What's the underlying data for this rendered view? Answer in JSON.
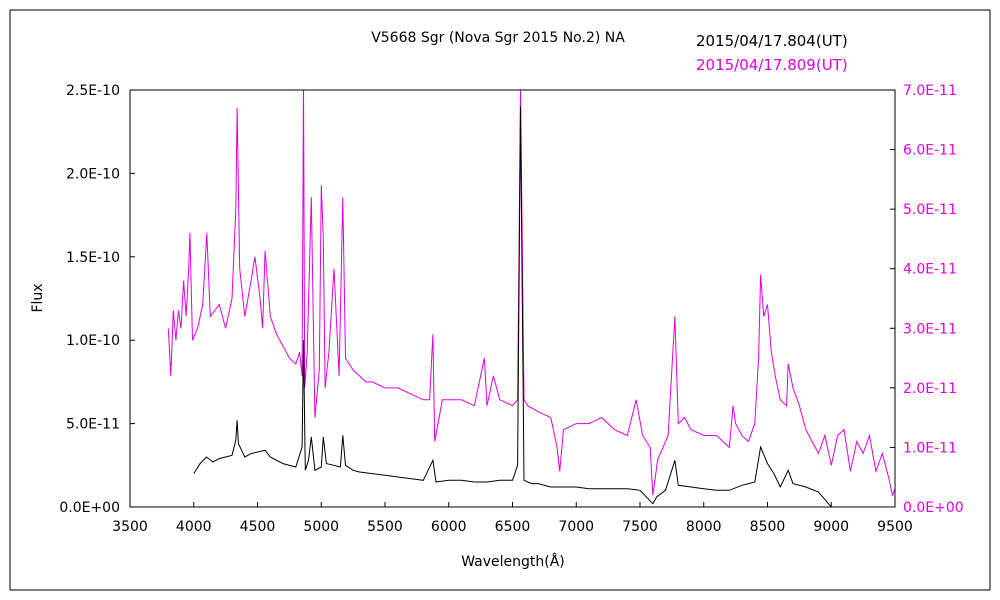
{
  "chart_data": {
    "type": "line",
    "title": "V5668 Sgr (Nova Sgr 2015 No.2)    NA",
    "xlabel": "Wavelength(Å)",
    "ylabel": "Flux",
    "xlim": [
      3500,
      9500
    ],
    "ylim_left": [
      0,
      2.5e-10
    ],
    "ylim_right": [
      0,
      7e-11
    ],
    "x_ticks": [
      "3500",
      "4000",
      "4500",
      "5000",
      "5500",
      "6000",
      "6500",
      "7000",
      "7500",
      "8000",
      "8500",
      "9000",
      "9500"
    ],
    "y_left_ticks": [
      "0.0E+00",
      "5.0E-11",
      "1.0E-10",
      "1.5E-10",
      "2.0E-10",
      "2.5E-10"
    ],
    "y_right_ticks": [
      "0.0E+00",
      "1.0E-11",
      "2.0E-11",
      "3.0E-11",
      "4.0E-11",
      "5.0E-11",
      "6.0E-11",
      "7.0E-11"
    ],
    "grid": false,
    "legend_placement": "top-right",
    "series": [
      {
        "name": "2015/04/17.804(UT)",
        "color": "#000000",
        "axis": "left",
        "x": [
          4000,
          4050,
          4100,
          4150,
          4200,
          4250,
          4300,
          4330,
          4340,
          4350,
          4400,
          4450,
          4500,
          4560,
          4600,
          4700,
          4800,
          4850,
          4861,
          4875,
          4900,
          4922,
          4950,
          5000,
          5016,
          5040,
          5100,
          5150,
          5169,
          5190,
          5250,
          5300,
          5400,
          5500,
          5600,
          5700,
          5800,
          5876,
          5900,
          6000,
          6100,
          6200,
          6300,
          6400,
          6500,
          6540,
          6563,
          6590,
          6650,
          6700,
          6800,
          6900,
          7000,
          7100,
          7200,
          7300,
          7400,
          7500,
          7600,
          7630,
          7700,
          7774,
          7800,
          7900,
          8000,
          8100,
          8200,
          8300,
          8400,
          8446,
          8500,
          8550,
          8600,
          8662,
          8700,
          8800,
          8900,
          9000
        ],
        "values": [
          2e-11,
          2.6e-11,
          3e-11,
          2.7e-11,
          2.9e-11,
          3e-11,
          3.1e-11,
          4e-11,
          5.2e-11,
          3.8e-11,
          3e-11,
          3.2e-11,
          3.3e-11,
          3.4e-11,
          3e-11,
          2.6e-11,
          2.4e-11,
          3.6e-11,
          1e-10,
          2.2e-11,
          2.8e-11,
          4.2e-11,
          2.2e-11,
          2.4e-11,
          4.2e-11,
          2.6e-11,
          2.5e-11,
          2.4e-11,
          4.3e-11,
          2.5e-11,
          2.2e-11,
          2.1e-11,
          2e-11,
          1.9e-11,
          1.8e-11,
          1.7e-11,
          1.6e-11,
          2.8e-11,
          1.5e-11,
          1.6e-11,
          1.6e-11,
          1.5e-11,
          1.5e-11,
          1.6e-11,
          1.6e-11,
          2.5e-11,
          2.4e-10,
          1.6e-11,
          1.4e-11,
          1.4e-11,
          1.2e-11,
          1.2e-11,
          1.2e-11,
          1.1e-11,
          1.1e-11,
          1.1e-11,
          1.1e-11,
          1e-11,
          2e-12,
          6e-12,
          1e-11,
          2.8e-11,
          1.3e-11,
          1.2e-11,
          1.1e-11,
          1e-11,
          1e-11,
          1.3e-11,
          1.5e-11,
          3.6e-11,
          2.6e-11,
          2e-11,
          1.2e-11,
          2.2e-11,
          1.4e-11,
          1.2e-11,
          9e-12,
          0
        ]
      },
      {
        "name": "2015/04/17.809(UT)",
        "color": "#e000e0",
        "axis": "right",
        "x": [
          3800,
          3820,
          3840,
          3860,
          3880,
          3900,
          3920,
          3940,
          3960,
          3970,
          3990,
          4030,
          4070,
          4102,
          4130,
          4200,
          4250,
          4300,
          4330,
          4340,
          4360,
          4400,
          4450,
          4480,
          4520,
          4540,
          4560,
          4600,
          4650,
          4700,
          4750,
          4800,
          4830,
          4850,
          4861,
          4870,
          4890,
          4922,
          4950,
          4985,
          5000,
          5016,
          5030,
          5060,
          5100,
          5140,
          5169,
          5190,
          5250,
          5300,
          5350,
          5400,
          5500,
          5600,
          5700,
          5800,
          5850,
          5876,
          5890,
          5950,
          6000,
          6100,
          6200,
          6280,
          6300,
          6350,
          6400,
          6500,
          6540,
          6563,
          6590,
          6620,
          6700,
          6800,
          6850,
          6870,
          6900,
          7000,
          7100,
          7200,
          7300,
          7400,
          7470,
          7520,
          7580,
          7600,
          7640,
          7680,
          7720,
          7774,
          7800,
          7850,
          7900,
          8000,
          8100,
          8200,
          8230,
          8250,
          8300,
          8350,
          8400,
          8430,
          8446,
          8470,
          8500,
          8530,
          8560,
          8600,
          8650,
          8662,
          8700,
          8750,
          8800,
          8850,
          8900,
          8950,
          9000,
          9050,
          9100,
          9150,
          9200,
          9250,
          9300,
          9350,
          9400,
          9450,
          9480,
          9500
        ],
        "values": [
          3e-11,
          2.2e-11,
          3.3e-11,
          2.8e-11,
          3.3e-11,
          3e-11,
          3.8e-11,
          3.2e-11,
          4e-11,
          4.6e-11,
          2.8e-11,
          3e-11,
          3.4e-11,
          4.6e-11,
          3.2e-11,
          3.4e-11,
          3e-11,
          3.5e-11,
          5e-11,
          6.7e-11,
          4e-11,
          3.2e-11,
          3.8e-11,
          4.2e-11,
          3.5e-11,
          3e-11,
          4.3e-11,
          3.2e-11,
          2.9e-11,
          2.7e-11,
          2.5e-11,
          2.4e-11,
          2.6e-11,
          2.2e-11,
          7.2e-11,
          2e-11,
          2.6e-11,
          5.2e-11,
          1.5e-11,
          2.3e-11,
          5.4e-11,
          4.5e-11,
          2e-11,
          2.6e-11,
          4e-11,
          2.2e-11,
          5.2e-11,
          2.5e-11,
          2.3e-11,
          2.2e-11,
          2.1e-11,
          2.1e-11,
          2e-11,
          2e-11,
          1.9e-11,
          1.8e-11,
          1.8e-11,
          2.9e-11,
          1.1e-11,
          1.8e-11,
          1.8e-11,
          1.8e-11,
          1.7e-11,
          2.5e-11,
          1.7e-11,
          2.2e-11,
          1.8e-11,
          1.7e-11,
          1.8e-11,
          7e-11,
          1.8e-11,
          1.7e-11,
          1.6e-11,
          1.5e-11,
          1e-11,
          6e-12,
          1.3e-11,
          1.4e-11,
          1.4e-11,
          1.5e-11,
          1.3e-11,
          1.2e-11,
          1.8e-11,
          1.2e-11,
          1e-11,
          2e-12,
          8e-12,
          1e-11,
          1.2e-11,
          3.2e-11,
          1.4e-11,
          1.5e-11,
          1.3e-11,
          1.2e-11,
          1.2e-11,
          1e-11,
          1.7e-11,
          1.4e-11,
          1.2e-11,
          1.1e-11,
          1.4e-11,
          2.5e-11,
          3.9e-11,
          3.2e-11,
          3.4e-11,
          2.6e-11,
          2.2e-11,
          1.8e-11,
          1.7e-11,
          2.4e-11,
          2e-11,
          1.7e-11,
          1.3e-11,
          1.1e-11,
          9e-12,
          1.2e-11,
          7e-12,
          1.2e-11,
          1.3e-11,
          6e-12,
          1.1e-11,
          9e-12,
          1.2e-11,
          6e-12,
          9e-12,
          5e-12,
          2e-12,
          3e-12
        ]
      }
    ]
  }
}
